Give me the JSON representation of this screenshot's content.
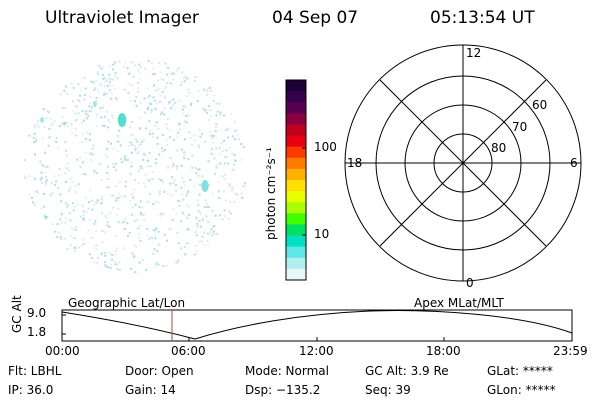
{
  "header": {
    "instrument": "Ultraviolet Imager",
    "date": "04 Sep 07",
    "time": "05:13:54 UT"
  },
  "colorbar": {
    "unit_label": "photon cm⁻²s⁻¹",
    "ticks": [
      "100",
      "10"
    ],
    "colors": [
      "#1a0033",
      "#35004d",
      "#5a0050",
      "#8a0040",
      "#c00020",
      "#e80010",
      "#ff3a00",
      "#ff7a00",
      "#ffb000",
      "#ffe000",
      "#e8ff00",
      "#a8ff00",
      "#40ff00",
      "#00e060",
      "#00e0c0",
      "#60e8e8",
      "#b0f0f0",
      "#e8f8f8"
    ]
  },
  "polar_plot": {
    "mlt_labels": {
      "top": "12",
      "left": "18",
      "right": "6",
      "bottom": "0"
    },
    "lat_labels": [
      "60",
      "70",
      "80"
    ]
  },
  "timeline": {
    "axis_label": "GC Alt",
    "y_ticks": [
      "9.0",
      "1.8"
    ],
    "left_caption": "Geographic Lat/Lon",
    "right_caption": "Apex MLat/MLT",
    "x_ticks": [
      "00:00",
      "06:00",
      "12:00",
      "18:00",
      "23:59"
    ],
    "marker_color": "#c04040"
  },
  "info": {
    "flt": "Flt: LBHL",
    "door": "Door: Open",
    "mode": "Mode: Normal",
    "gc_alt": "GC Alt: 3.9 Re",
    "glat": "GLat: *****",
    "ip": "IP: 36.0",
    "gain": "Gain: 14",
    "dsp": "Dsp: −135.2",
    "seq": "Seq: 39",
    "glon": "GLon: *****"
  }
}
